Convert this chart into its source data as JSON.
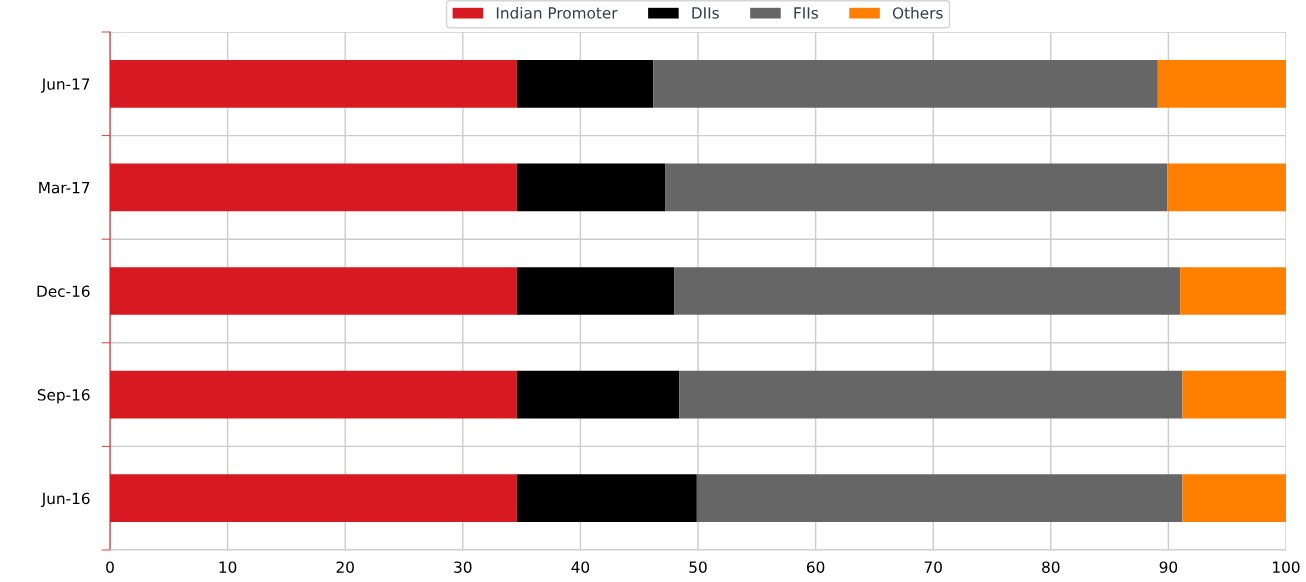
{
  "chart_data": {
    "type": "bar",
    "orientation": "horizontal",
    "stacked": true,
    "categories": [
      "Jun-17",
      "Mar-17",
      "Dec-16",
      "Sep-16",
      "Jun-16"
    ],
    "series": [
      {
        "name": "Indian Promoter",
        "color": "#d71a21",
        "values": [
          34.6,
          34.6,
          34.6,
          34.6,
          34.6
        ]
      },
      {
        "name": "DIIs",
        "color": "#000000",
        "values": [
          11.6,
          12.6,
          13.4,
          13.8,
          15.3
        ]
      },
      {
        "name": "FIIs",
        "color": "#666666",
        "values": [
          42.9,
          42.7,
          43.0,
          42.8,
          41.3
        ]
      },
      {
        "name": "Others",
        "color": "#ff8000",
        "values": [
          10.9,
          10.1,
          9.0,
          8.8,
          8.8
        ]
      }
    ],
    "xlim": [
      0,
      100
    ],
    "xticks": [
      0,
      10,
      20,
      30,
      40,
      50,
      60,
      70,
      80,
      90,
      100
    ],
    "grid": true,
    "legend": "top"
  }
}
